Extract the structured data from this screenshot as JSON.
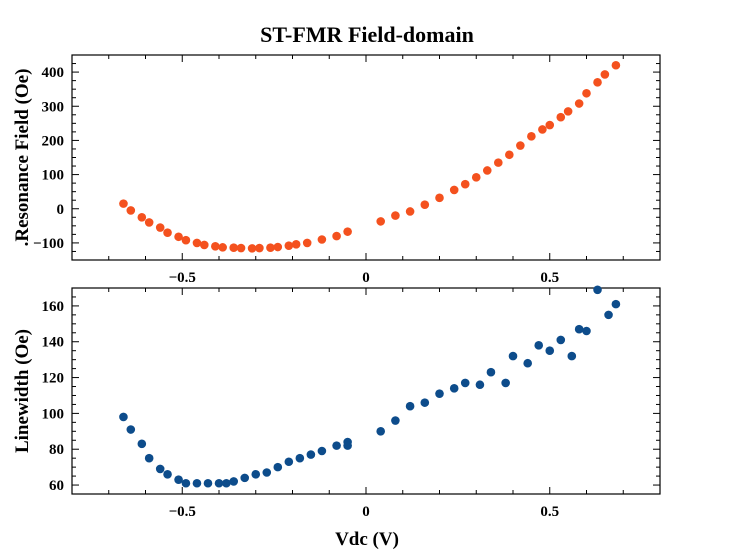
{
  "chart_data": {
    "type": "scatter",
    "title": "ST-FMR Field-domain",
    "xlabel": "Vdc (V)",
    "xlim": [
      -0.8,
      0.8
    ],
    "x_ticks": [
      -0.5,
      0,
      0.5
    ],
    "x_tick_labels": [
      "−0.5",
      "0",
      "0.5"
    ],
    "grid": false,
    "legend": "none",
    "panels": [
      {
        "id": "resonance",
        "ylabel": ".Resonance Field (Oe)",
        "ylim": [
          -150,
          450
        ],
        "y_ticks": [
          -100,
          0,
          100,
          200,
          300,
          400
        ],
        "y_tick_labels": [
          "−100",
          "0",
          "100",
          "200",
          "300",
          "400"
        ],
        "color": "#f4511e",
        "x": [
          -0.66,
          -0.64,
          -0.61,
          -0.59,
          -0.56,
          -0.54,
          -0.51,
          -0.49,
          -0.46,
          -0.44,
          -0.41,
          -0.39,
          -0.36,
          -0.34,
          -0.31,
          -0.29,
          -0.26,
          -0.24,
          -0.21,
          -0.19,
          -0.16,
          -0.12,
          -0.08,
          -0.05,
          0.04,
          0.08,
          0.12,
          0.16,
          0.2,
          0.24,
          0.27,
          0.3,
          0.33,
          0.36,
          0.39,
          0.42,
          0.45,
          0.48,
          0.5,
          0.53,
          0.55,
          0.58,
          0.6,
          0.63,
          0.65,
          0.68
        ],
        "y": [
          15,
          -5,
          -25,
          -40,
          -55,
          -70,
          -82,
          -92,
          -100,
          -106,
          -110,
          -113,
          -114,
          -115,
          -116,
          -115,
          -114,
          -112,
          -108,
          -104,
          -100,
          -90,
          -80,
          -67,
          -37,
          -20,
          -8,
          12,
          32,
          55,
          72,
          92,
          112,
          135,
          158,
          185,
          212,
          232,
          245,
          268,
          285,
          308,
          338,
          370,
          393,
          420
        ]
      },
      {
        "id": "linewidth",
        "ylabel": "Linewidth (Oe)",
        "ylim": [
          55,
          170
        ],
        "y_ticks": [
          60,
          80,
          100,
          120,
          140,
          160
        ],
        "y_tick_labels": [
          "60",
          "80",
          "100",
          "120",
          "140",
          "160"
        ],
        "color": "#0d4c8b",
        "x": [
          -0.66,
          -0.64,
          -0.61,
          -0.59,
          -0.56,
          -0.54,
          -0.51,
          -0.49,
          -0.46,
          -0.43,
          -0.4,
          -0.38,
          -0.36,
          -0.33,
          -0.3,
          -0.27,
          -0.24,
          -0.21,
          -0.18,
          -0.15,
          -0.12,
          -0.08,
          -0.05,
          -0.05,
          0.04,
          0.08,
          0.12,
          0.16,
          0.2,
          0.24,
          0.27,
          0.31,
          0.34,
          0.38,
          0.4,
          0.44,
          0.47,
          0.5,
          0.53,
          0.56,
          0.58,
          0.6,
          0.63,
          0.66,
          0.68
        ],
        "y": [
          98,
          91,
          83,
          75,
          69,
          66,
          63,
          61,
          61,
          61,
          61,
          61,
          62,
          64,
          66,
          67,
          70,
          73,
          75,
          77,
          79,
          82,
          84,
          82,
          90,
          96,
          104,
          106,
          111,
          114,
          117,
          116,
          123,
          117,
          132,
          128,
          138,
          135,
          141,
          132,
          147,
          146,
          169,
          155,
          161
        ]
      }
    ]
  }
}
